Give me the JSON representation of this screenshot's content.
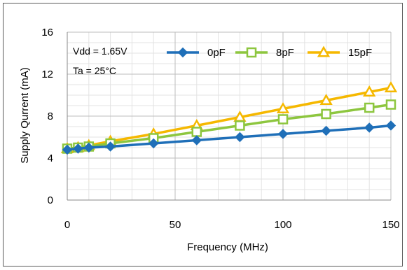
{
  "chart_data": {
    "type": "line",
    "xlabel": "Frequency (MHz)",
    "ylabel": "Supply Qurrent (mA)",
    "xlim": [
      0,
      150
    ],
    "ylim": [
      0,
      16
    ],
    "x_ticks": [
      0,
      50,
      100,
      150
    ],
    "y_ticks": [
      0,
      4,
      8,
      12,
      16
    ],
    "grid": true,
    "legend_position": "top",
    "annotations": [
      "Vdd = 1.65V",
      "Ta = 25°C"
    ],
    "series": [
      {
        "name": "0pF",
        "color": "#1f6fb8",
        "marker": "diamond",
        "x": [
          0,
          5,
          10,
          20,
          40,
          60,
          80,
          100,
          120,
          140,
          150
        ],
        "y": [
          4.8,
          4.9,
          5.0,
          5.1,
          5.4,
          5.7,
          6.0,
          6.3,
          6.6,
          6.9,
          7.1
        ]
      },
      {
        "name": "8pF",
        "color": "#8dc63f",
        "marker": "square",
        "x": [
          0,
          5,
          10,
          20,
          40,
          60,
          80,
          100,
          120,
          140,
          150
        ],
        "y": [
          4.9,
          5.0,
          5.1,
          5.4,
          5.9,
          6.5,
          7.1,
          7.7,
          8.2,
          8.8,
          9.1
        ]
      },
      {
        "name": "15pF",
        "color": "#f5b800",
        "marker": "triangle",
        "x": [
          0,
          5,
          10,
          20,
          40,
          60,
          80,
          100,
          120,
          140,
          150
        ],
        "y": [
          4.9,
          5.0,
          5.2,
          5.6,
          6.3,
          7.1,
          7.9,
          8.7,
          9.5,
          10.3,
          10.7
        ]
      }
    ]
  }
}
